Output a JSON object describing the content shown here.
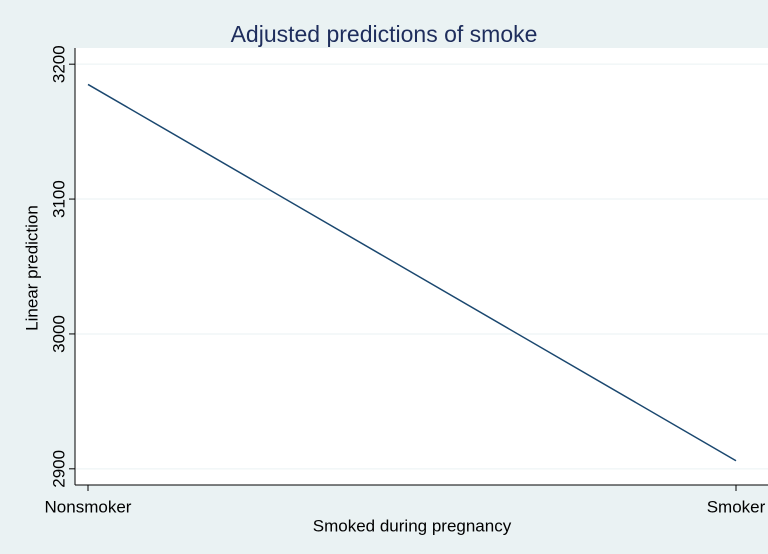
{
  "chart_data": {
    "type": "line",
    "title": "Adjusted predictions of smoke",
    "x_label": "Smoked during pregnancy",
    "y_label": "Linear prediction",
    "categories": [
      "Nonsmoker",
      "Smoker"
    ],
    "series": [
      {
        "name": "Linear prediction",
        "color": "#1a476f",
        "values": [
          3185,
          2906
        ]
      }
    ],
    "ylim": [
      2888,
      3212
    ],
    "yticks": [
      2900,
      3000,
      3100,
      3200
    ],
    "grid": true
  }
}
